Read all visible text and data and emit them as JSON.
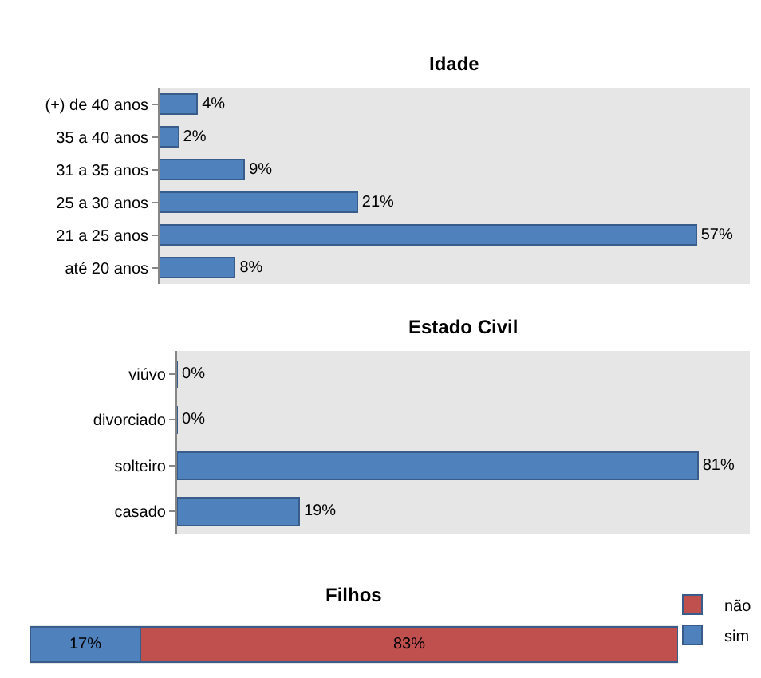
{
  "chart_data": [
    {
      "type": "bar",
      "orientation": "horizontal",
      "title": "Idade",
      "categories": [
        "(+) de 40 anos",
        "35 a 40 anos",
        "31 a 35 anos",
        "25 a 30 anos",
        "21 a 25 anos",
        "até 20 anos"
      ],
      "values": [
        4,
        2,
        9,
        21,
        57,
        8
      ],
      "value_labels": [
        "4%",
        "2%",
        "9%",
        "21%",
        "57%",
        "8%"
      ],
      "color": "#4f81bd",
      "grid": false,
      "legend": false
    },
    {
      "type": "bar",
      "orientation": "horizontal",
      "title": "Estado Civil",
      "categories": [
        "viúvo",
        "divorciado",
        "solteiro",
        "casado"
      ],
      "values": [
        0,
        0,
        81,
        19
      ],
      "value_labels": [
        "0%",
        "0%",
        "81%",
        "19%"
      ],
      "color": "#4f81bd",
      "grid": false,
      "legend": false
    },
    {
      "type": "bar",
      "orientation": "horizontal",
      "stacked": true,
      "title": "Filhos",
      "categories": [
        null
      ],
      "series": [
        {
          "name": "sim",
          "color": "#4f81bd",
          "values": [
            17
          ],
          "value_labels": [
            "17%"
          ]
        },
        {
          "name": "não",
          "color": "#c0504d",
          "values": [
            83
          ],
          "value_labels": [
            "83%"
          ]
        }
      ],
      "grid": false,
      "legend": "right"
    }
  ]
}
